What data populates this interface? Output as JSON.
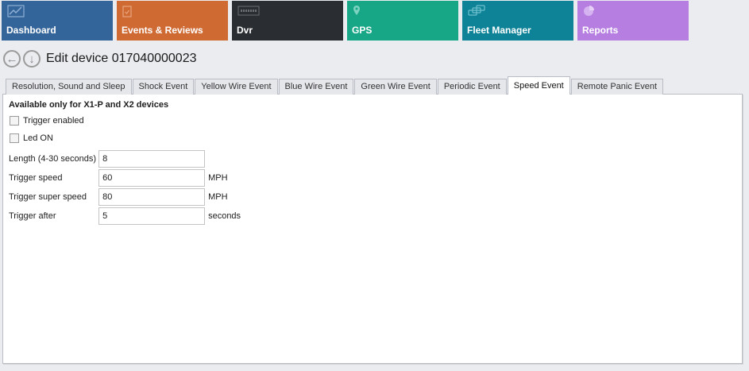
{
  "nav": {
    "tiles": [
      {
        "label": "Dashboard",
        "color": "#34659a",
        "icon": "chart-icon"
      },
      {
        "label": "Events & Reviews",
        "color": "#cf6a33",
        "icon": "clipboard-icon"
      },
      {
        "label": "Dvr",
        "color": "#2a2d32",
        "icon": "merge-logo-icon"
      },
      {
        "label": "GPS",
        "color": "#17a686",
        "icon": "map-pin-icon"
      },
      {
        "label": "Fleet Manager",
        "color": "#0e8397",
        "icon": "cars-icon"
      },
      {
        "label": "Reports",
        "color": "#b67ee0",
        "icon": "pie-chart-icon"
      }
    ]
  },
  "header": {
    "title": "Edit device 017040000023"
  },
  "tabs": [
    {
      "label": "Resolution, Sound and Sleep"
    },
    {
      "label": "Shock Event"
    },
    {
      "label": "Yellow Wire Event"
    },
    {
      "label": "Blue Wire Event"
    },
    {
      "label": "Green Wire Event"
    },
    {
      "label": "Periodic Event"
    },
    {
      "label": "Speed Event",
      "active": true
    },
    {
      "label": "Remote Panic Event"
    }
  ],
  "form": {
    "note": "Available only for X1-P and X2 devices",
    "trigger_enabled": {
      "label": "Trigger enabled",
      "checked": false
    },
    "led_on": {
      "label": "Led ON",
      "checked": false
    },
    "fields": [
      {
        "label": "Length (4-30 seconds)",
        "value": "8",
        "unit": ""
      },
      {
        "label": "Trigger speed",
        "value": "60",
        "unit": "MPH"
      },
      {
        "label": "Trigger super speed",
        "value": "80",
        "unit": "MPH"
      },
      {
        "label": "Trigger after",
        "value": "5",
        "unit": "seconds"
      }
    ]
  }
}
